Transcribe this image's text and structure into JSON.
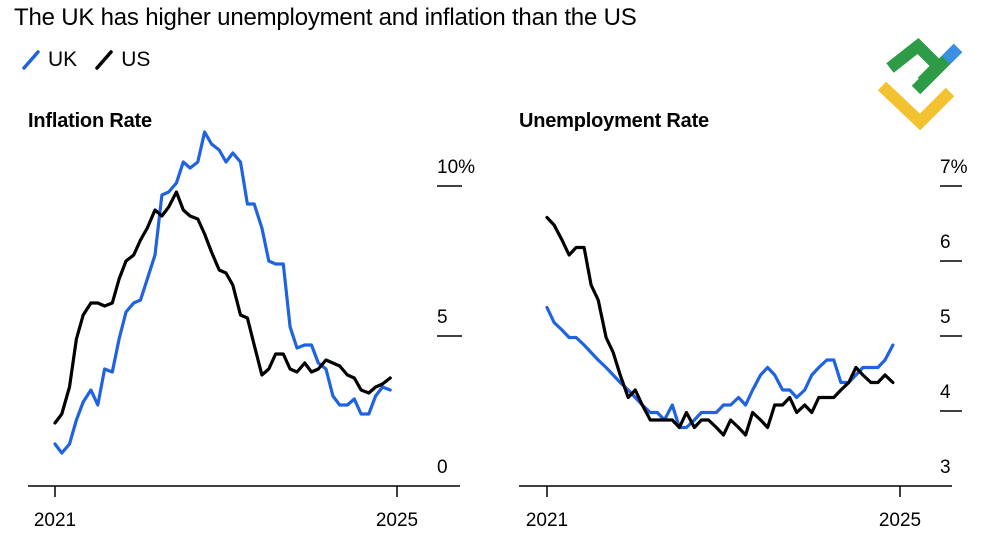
{
  "title": "The UK has higher unemployment and inflation than the US",
  "colors": {
    "uk": "#1f63e0",
    "us": "#000000",
    "axis": "#000000"
  },
  "logo": {
    "icon": "green-yellow-blue-logo-icon"
  },
  "chart_data": [
    {
      "type": "line",
      "title": "Inflation Rate",
      "legend": "top-left",
      "grid": false,
      "xlabel": "",
      "ylabel": "",
      "xlim": [
        2021.0,
        2025.0
      ],
      "ylim": [
        0,
        10
      ],
      "y_ticks": [
        {
          "value": 10,
          "label": "10%"
        },
        {
          "value": 5,
          "label": "5"
        },
        {
          "value": 0,
          "label": "0"
        }
      ],
      "x_ticks": [
        {
          "value": 2021,
          "label": "2021"
        },
        {
          "value": 2025,
          "label": "2025"
        }
      ],
      "series": [
        {
          "name": "UK",
          "x": [
            2021.0,
            2021.08,
            2021.17,
            2021.25,
            2021.33,
            2021.42,
            2021.5,
            2021.58,
            2021.67,
            2021.75,
            2021.83,
            2021.92,
            2022.0,
            2022.08,
            2022.17,
            2022.25,
            2022.33,
            2022.42,
            2022.5,
            2022.58,
            2022.67,
            2022.75,
            2022.83,
            2022.92,
            2023.0,
            2023.08,
            2023.17,
            2023.25,
            2023.33,
            2023.42,
            2023.5,
            2023.58,
            2023.67,
            2023.75,
            2023.83,
            2023.92,
            2024.0,
            2024.08,
            2024.17,
            2024.25,
            2024.33,
            2024.42,
            2024.5,
            2024.58,
            2024.67,
            2024.75,
            2024.83,
            2024.92
          ],
          "values": [
            0.7,
            0.4,
            0.7,
            1.5,
            2.1,
            2.5,
            2.0,
            3.2,
            3.1,
            4.2,
            5.1,
            5.4,
            5.5,
            6.2,
            7.0,
            9.0,
            9.1,
            9.4,
            10.1,
            9.9,
            10.1,
            11.1,
            10.7,
            10.5,
            10.1,
            10.4,
            10.1,
            8.7,
            8.7,
            7.9,
            6.8,
            6.7,
            6.7,
            4.6,
            3.9,
            4.0,
            4.0,
            3.4,
            3.2,
            2.3,
            2.0,
            2.0,
            2.2,
            1.7,
            1.7,
            2.3,
            2.6,
            2.5
          ]
        },
        {
          "name": "US",
          "x": [
            2021.0,
            2021.08,
            2021.17,
            2021.25,
            2021.33,
            2021.42,
            2021.5,
            2021.58,
            2021.67,
            2021.75,
            2021.83,
            2021.92,
            2022.0,
            2022.08,
            2022.17,
            2022.25,
            2022.33,
            2022.42,
            2022.5,
            2022.58,
            2022.67,
            2022.75,
            2022.83,
            2022.92,
            2023.0,
            2023.08,
            2023.17,
            2023.25,
            2023.33,
            2023.42,
            2023.5,
            2023.58,
            2023.67,
            2023.75,
            2023.83,
            2023.92,
            2024.0,
            2024.08,
            2024.17,
            2024.25,
            2024.33,
            2024.42,
            2024.5,
            2024.58,
            2024.67,
            2024.75,
            2024.83,
            2024.92
          ],
          "values": [
            1.4,
            1.7,
            2.6,
            4.2,
            5.0,
            5.4,
            5.4,
            5.3,
            5.4,
            6.2,
            6.8,
            7.0,
            7.5,
            7.9,
            8.5,
            8.3,
            8.6,
            9.1,
            8.5,
            8.3,
            8.2,
            7.7,
            7.1,
            6.5,
            6.4,
            6.0,
            5.0,
            4.9,
            4.0,
            3.0,
            3.2,
            3.7,
            3.7,
            3.2,
            3.1,
            3.4,
            3.1,
            3.2,
            3.5,
            3.4,
            3.3,
            3.0,
            2.9,
            2.5,
            2.4,
            2.6,
            2.7,
            2.9
          ]
        }
      ]
    },
    {
      "type": "line",
      "title": "Unemployment Rate",
      "legend": "top-left",
      "grid": false,
      "xlabel": "",
      "ylabel": "",
      "xlim": [
        2021.0,
        2025.0
      ],
      "ylim": [
        3,
        7
      ],
      "y_ticks": [
        {
          "value": 7,
          "label": "7%"
        },
        {
          "value": 6,
          "label": "6"
        },
        {
          "value": 5,
          "label": "5"
        },
        {
          "value": 4,
          "label": "4"
        },
        {
          "value": 3,
          "label": "3"
        }
      ],
      "x_ticks": [
        {
          "value": 2021,
          "label": "2021"
        },
        {
          "value": 2025,
          "label": "2025"
        }
      ],
      "series": [
        {
          "name": "UK",
          "x": [
            2021.0,
            2021.08,
            2021.17,
            2021.25,
            2021.33,
            2021.42,
            2021.5,
            2021.58,
            2021.67,
            2021.75,
            2021.83,
            2021.92,
            2022.0,
            2022.08,
            2022.17,
            2022.25,
            2022.33,
            2022.42,
            2022.5,
            2022.58,
            2022.67,
            2022.75,
            2022.83,
            2022.92,
            2023.0,
            2023.08,
            2023.17,
            2023.25,
            2023.33,
            2023.42,
            2023.5,
            2023.58,
            2023.67,
            2023.75,
            2023.83,
            2023.92,
            2024.0,
            2024.08,
            2024.17,
            2024.25,
            2024.33,
            2024.42,
            2024.5,
            2024.58,
            2024.67,
            2024.75,
            2024.83,
            2024.92
          ],
          "values": [
            5.1,
            4.9,
            4.8,
            4.7,
            4.7,
            4.6,
            4.5,
            4.4,
            4.3,
            4.2,
            4.1,
            4.0,
            3.9,
            3.8,
            3.7,
            3.7,
            3.6,
            3.8,
            3.5,
            3.5,
            3.6,
            3.7,
            3.7,
            3.7,
            3.8,
            3.8,
            3.9,
            3.8,
            4.0,
            4.2,
            4.3,
            4.2,
            4.0,
            4.0,
            3.9,
            4.0,
            4.2,
            4.3,
            4.4,
            4.4,
            4.1,
            4.1,
            4.2,
            4.3,
            4.3,
            4.3,
            4.4,
            4.6
          ]
        },
        {
          "name": "US",
          "x": [
            2021.0,
            2021.08,
            2021.17,
            2021.25,
            2021.33,
            2021.42,
            2021.5,
            2021.58,
            2021.67,
            2021.75,
            2021.83,
            2021.92,
            2022.0,
            2022.08,
            2022.17,
            2022.25,
            2022.33,
            2022.42,
            2022.5,
            2022.58,
            2022.67,
            2022.75,
            2022.83,
            2022.92,
            2023.0,
            2023.08,
            2023.17,
            2023.25,
            2023.33,
            2023.42,
            2023.5,
            2023.58,
            2023.67,
            2023.75,
            2023.83,
            2023.92,
            2024.0,
            2024.08,
            2024.17,
            2024.25,
            2024.33,
            2024.42,
            2024.5,
            2024.58,
            2024.67,
            2024.75,
            2024.83,
            2024.92
          ],
          "values": [
            6.3,
            6.2,
            6.0,
            5.8,
            5.9,
            5.9,
            5.4,
            5.2,
            4.7,
            4.5,
            4.2,
            3.9,
            4.0,
            3.8,
            3.6,
            3.6,
            3.6,
            3.6,
            3.5,
            3.7,
            3.5,
            3.6,
            3.6,
            3.5,
            3.4,
            3.6,
            3.5,
            3.4,
            3.7,
            3.6,
            3.5,
            3.8,
            3.8,
            3.9,
            3.7,
            3.8,
            3.7,
            3.9,
            3.9,
            3.9,
            4.0,
            4.1,
            4.3,
            4.2,
            4.1,
            4.1,
            4.2,
            4.1
          ]
        }
      ]
    }
  ]
}
